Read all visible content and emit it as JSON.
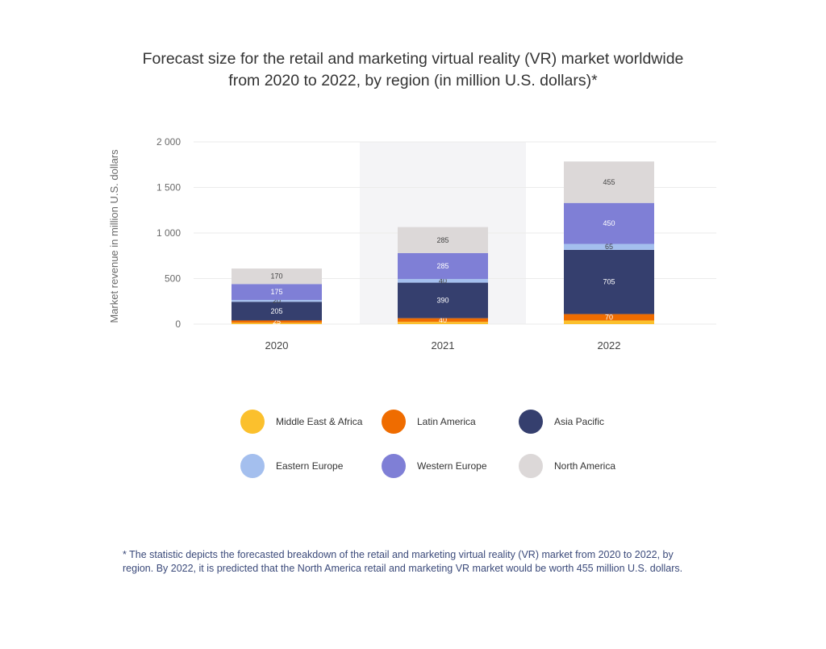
{
  "title_lines": [
    "Forecast size for the retail and marketing virtual reality (VR)  market worldwide",
    "from 2020 to 2022, by region (in million U.S. dollars)*"
  ],
  "footnote_lines": [
    "* The statistic depicts the forecasted breakdown of the retail and marketing virtual reality (VR) market from 2020 to 2022, by",
    "region. By 2022, it is predicted that the North America retail and marketing VR market would be worth 455 million U.S. dollars."
  ],
  "chart_data": {
    "type": "bar",
    "stacked": true,
    "title": "Forecast size for the retail and marketing virtual reality (VR)  market worldwide from 2020 to 2022, by region (in million U.S. dollars)*",
    "xlabel": "",
    "ylabel": "Market revenue in million U.S. dollars",
    "categories": [
      "2020",
      "2021",
      "2022"
    ],
    "ylim": [
      0,
      2000
    ],
    "yticks": [
      0,
      500,
      1000,
      1500,
      2000
    ],
    "ytick_labels": [
      "0",
      "500",
      "1 000",
      "1 500",
      "2 000"
    ],
    "highlighted_category": "2021",
    "grid": true,
    "legend_position": "bottom",
    "series": [
      {
        "name": "Middle East & Africa",
        "values": [
          15,
          25,
          40
        ],
        "labels": [
          "",
          "",
          ""
        ],
        "color": "#fbc02d"
      },
      {
        "name": "Latin America",
        "values": [
          25,
          40,
          70
        ],
        "labels": [
          "25",
          "40",
          "70"
        ],
        "color": "#ef6c00"
      },
      {
        "name": "Asia Pacific",
        "values": [
          205,
          390,
          705
        ],
        "labels": [
          "205",
          "390",
          "705"
        ],
        "color": "#353f6e"
      },
      {
        "name": "Eastern Europe",
        "values": [
          20,
          40,
          65
        ],
        "labels": [
          "20",
          "40",
          "65"
        ],
        "color": "#a4bfee"
      },
      {
        "name": "Western Europe",
        "values": [
          175,
          285,
          450
        ],
        "labels": [
          "175",
          "285",
          "450"
        ],
        "color": "#7f7fd6"
      },
      {
        "name": "North America",
        "values": [
          170,
          285,
          455
        ],
        "labels": [
          "170",
          "285",
          "455"
        ],
        "color": "#dcd8d8"
      }
    ],
    "legend_order": [
      0,
      1,
      2,
      3,
      4,
      5
    ]
  }
}
